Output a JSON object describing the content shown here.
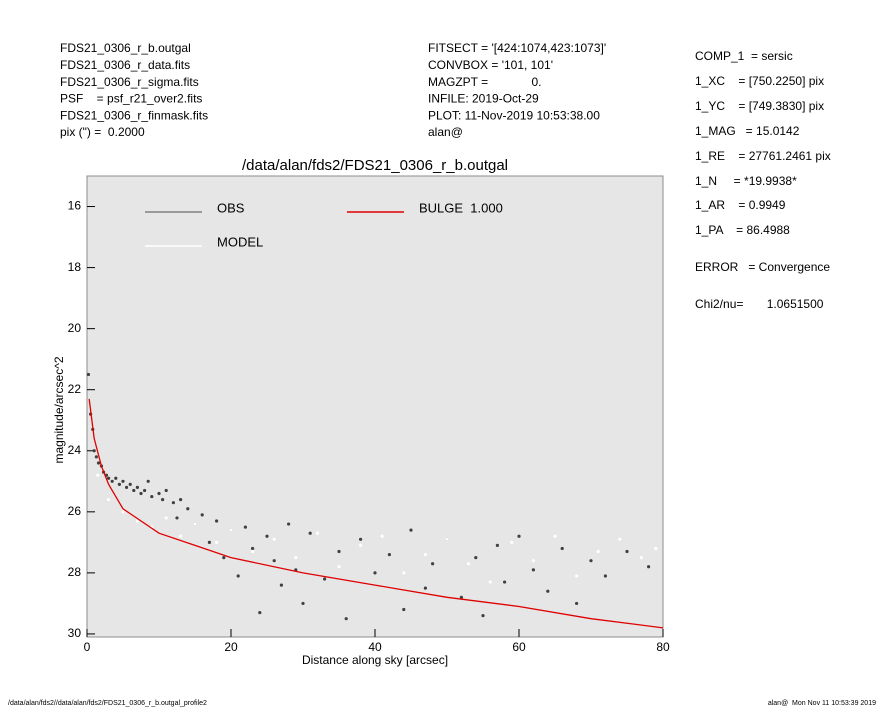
{
  "header": {
    "left": [
      "FDS21_0306_r_b.outgal",
      "FDS21_0306_r_data.fits",
      "FDS21_0306_r_sigma.fits",
      "PSF    = psf_r21_over2.fits",
      "FDS21_0306_r_finmask.fits",
      "pix (\") =  0.2000"
    ],
    "middle": [
      "FITSECT = '[424:1074,423:1073]'",
      "CONVBOX = '101, 101'",
      "MAGZPT =             0.",
      "INFILE: 2019-Oct-29",
      "PLOT: 11-Nov-2019 10:53:38.00",
      "alan@"
    ]
  },
  "parameters": [
    "COMP_1  = sersic",
    "1_XC    = [750.2250] pix",
    "1_YC    = [749.3830] pix",
    "1_MAG   = 15.0142",
    "1_RE    = 27761.2461 pix",
    "1_N     = *19.9938*",
    "1_AR    = 0.9949",
    "1_PA    = 86.4988",
    "ERROR   = Convergence",
    "Chi2/nu=       1.0651500"
  ],
  "footer": {
    "left": "/data/alan/fds2//data/alan/fds2/FDS21_0306_r_b.outgal_profile2",
    "right": "alan@  Mon Nov 11 10:53:39 2019"
  },
  "chart_data": {
    "type": "scatter",
    "title": "/data/alan/fds2/FDS21_0306_r_b.outgal",
    "x_label": "Distance along sky [arcsec]",
    "y_label": "magnitude/arcsec^2",
    "xlim": [
      0,
      80
    ],
    "ylim": [
      30.1,
      15
    ],
    "xticks": [
      0,
      20,
      40,
      60,
      80
    ],
    "yticks": [
      16,
      18,
      20,
      22,
      24,
      26,
      28,
      30
    ],
    "series": [
      {
        "name": "OBS",
        "type": "scatter",
        "color": "#404040",
        "legend_color": "#808080",
        "x": [
          0.2,
          0.5,
          0.8,
          1,
          1.3,
          1.6,
          2,
          2.3,
          2.7,
          3,
          3.5,
          4,
          4.5,
          5,
          5.5,
          6,
          6.5,
          7,
          7.5,
          8,
          8.5,
          9,
          10,
          10.5,
          11,
          12,
          12.5,
          13,
          14,
          15,
          16,
          17,
          18,
          19,
          20,
          21,
          22,
          23,
          24,
          25,
          26,
          27,
          28,
          29,
          30,
          31,
          33,
          35,
          36,
          38,
          40,
          42,
          44,
          45,
          47,
          48,
          50,
          52,
          54,
          55,
          57,
          58,
          60,
          62,
          64,
          66,
          68,
          70,
          72,
          75,
          78
        ],
        "values": [
          21.5,
          22.8,
          23.3,
          24.0,
          24.2,
          24.4,
          24.5,
          24.7,
          24.8,
          24.9,
          25.0,
          24.9,
          25.1,
          25.0,
          25.2,
          25.1,
          25.3,
          25.2,
          25.4,
          25.3,
          25.0,
          25.5,
          25.4,
          25.6,
          25.3,
          25.7,
          26.2,
          25.6,
          25.9,
          26.4,
          26.1,
          27.0,
          26.3,
          27.5,
          26.6,
          28.1,
          26.5,
          27.2,
          29.3,
          26.8,
          27.6,
          28.4,
          26.4,
          27.9,
          29.0,
          26.7,
          28.2,
          27.3,
          29.5,
          26.9,
          28.0,
          27.4,
          29.2,
          26.6,
          28.5,
          27.7,
          26.9,
          28.8,
          27.5,
          29.4,
          27.1,
          28.3,
          26.8,
          27.9,
          28.6,
          27.2,
          29.0,
          27.6,
          28.1,
          27.3,
          27.8
        ]
      },
      {
        "name": "MODEL",
        "type": "scatter",
        "color": "#ffffff",
        "legend_color": "#ffffff",
        "x": [
          1.5,
          3,
          5,
          7,
          9,
          11,
          13,
          15,
          18,
          20,
          23,
          26,
          29,
          32,
          35,
          38,
          41,
          44,
          47,
          50,
          53,
          56,
          59,
          62,
          65,
          68,
          71,
          74,
          77,
          79
        ],
        "values": [
          24.8,
          25.6,
          26.0,
          26.3,
          26.5,
          26.2,
          26.8,
          26.4,
          27.0,
          26.6,
          27.3,
          26.9,
          27.5,
          26.7,
          27.8,
          27.1,
          26.8,
          28.0,
          27.4,
          26.9,
          27.7,
          28.3,
          27.0,
          27.6,
          26.8,
          28.1,
          27.3,
          26.9,
          27.5,
          27.2
        ]
      },
      {
        "name": "BULGE  1.000",
        "type": "line",
        "color": "#e00000",
        "legend_color": "#e00000",
        "x": [
          0.3,
          1,
          2,
          3,
          5,
          10,
          15,
          20,
          30,
          40,
          50,
          60,
          70,
          80
        ],
        "values": [
          22.3,
          23.6,
          24.5,
          25.1,
          25.9,
          26.7,
          27.1,
          27.5,
          28.0,
          28.4,
          28.8,
          29.1,
          29.5,
          29.8
        ]
      }
    ]
  }
}
